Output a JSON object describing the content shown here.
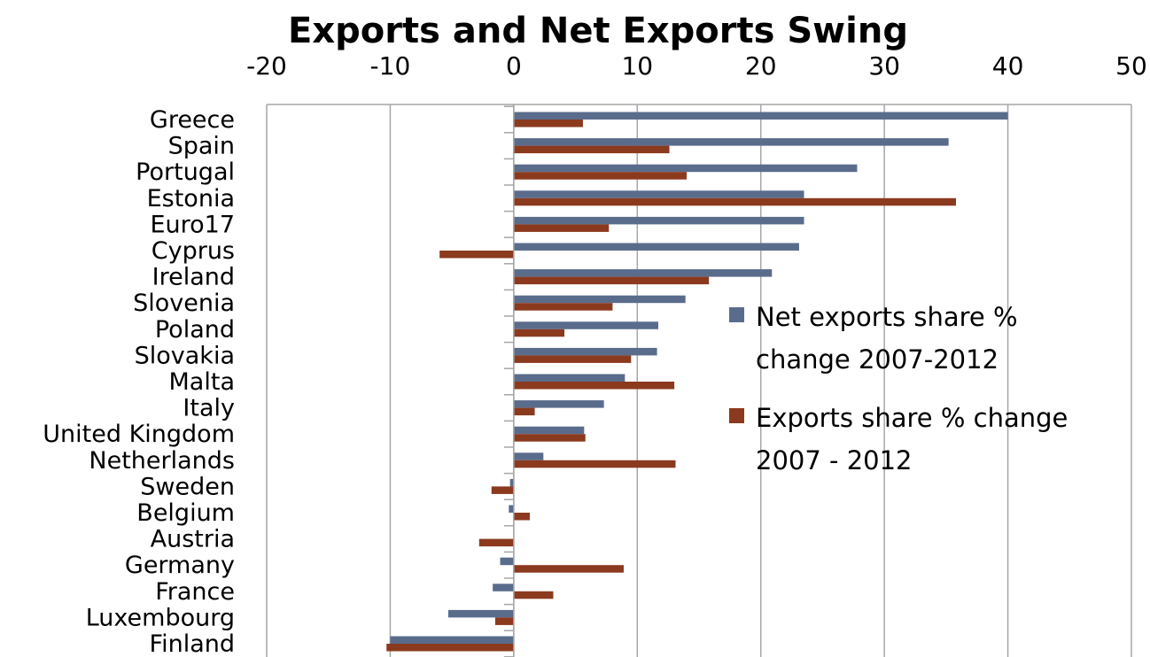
{
  "chart_data": {
    "type": "bar",
    "orientation": "horizontal",
    "title": "Exports and Net Exports Swing",
    "xlabel": "",
    "ylabel": "",
    "xlim": [
      -20,
      50
    ],
    "xticks": [
      "-20",
      "-10",
      "0",
      "10",
      "20",
      "30",
      "40",
      "50"
    ],
    "grid": "vertical",
    "legend_position": "right",
    "categories": [
      "Greece",
      "Spain",
      "Portugal",
      "Estonia",
      "Euro17",
      "Cyprus",
      "Ireland",
      "Slovenia",
      "Poland",
      "Slovakia",
      "Malta",
      "Italy",
      "United Kingdom",
      "Netherlands",
      "Sweden",
      "Belgium",
      "Austria",
      "Germany",
      "France",
      "Luxembourg",
      "Finland"
    ],
    "series": [
      {
        "name": "Net exports share % change 2007-2012",
        "legend_lines": [
          "Net exports share %",
          "change 2007-2012"
        ],
        "color": "#5A6C8C",
        "values": [
          40,
          35.2,
          27.8,
          23.5,
          23.5,
          23.1,
          20.9,
          13.9,
          11.7,
          11.6,
          9,
          7.3,
          5.7,
          2.4,
          -0.3,
          -0.4,
          0,
          -1.1,
          -1.7,
          -5.3,
          -10
        ]
      },
      {
        "name": "Exports share % change 2007 - 2012",
        "legend_lines": [
          "Exports share % change",
          "2007 - 2012"
        ],
        "color": "#8B3A1E",
        "values": [
          5.6,
          12.6,
          14,
          35.8,
          7.7,
          -6,
          15.8,
          8,
          4.1,
          9.5,
          13,
          1.7,
          5.8,
          13.1,
          -1.8,
          1.3,
          -2.8,
          8.9,
          3.2,
          -1.5,
          -10.3
        ]
      }
    ]
  }
}
